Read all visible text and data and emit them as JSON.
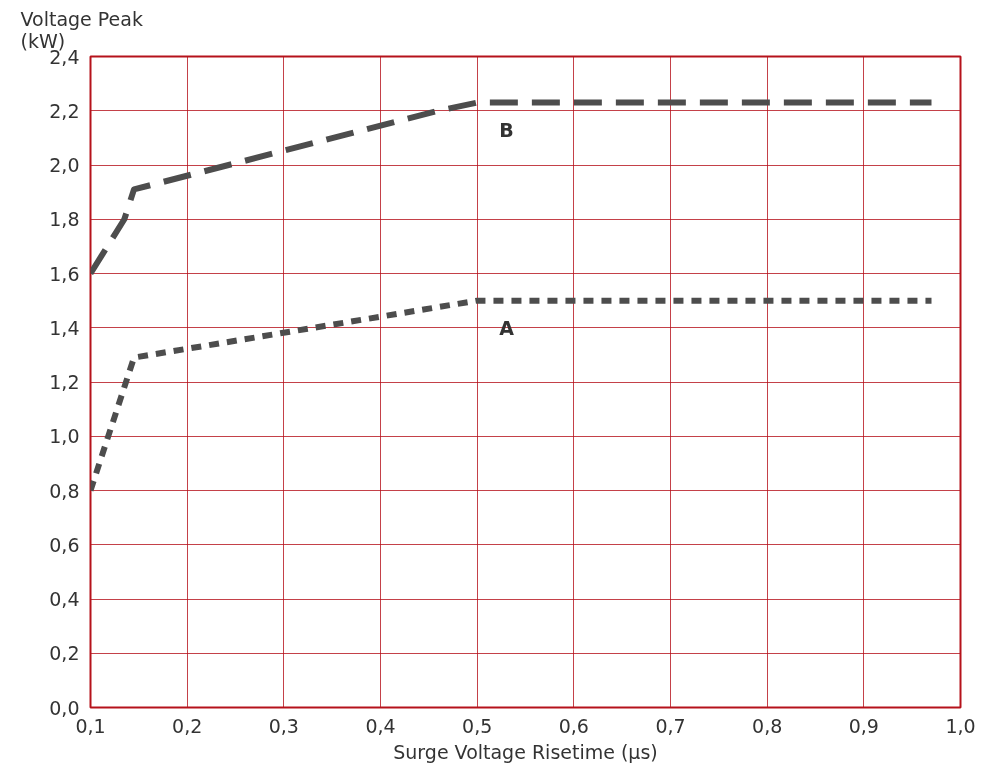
{
  "chart_data": {
    "type": "line",
    "xlabel": "Surge Voltage Risetime (µs)",
    "ylabel": "Voltage Peak\n(kW)",
    "xlim": [
      0.1,
      1.0
    ],
    "ylim": [
      0,
      2.4
    ],
    "xticks": [
      {
        "value": 0.1,
        "label": "0,1"
      },
      {
        "value": 0.2,
        "label": "0,2"
      },
      {
        "value": 0.3,
        "label": "0,3"
      },
      {
        "value": 0.4,
        "label": "0,4"
      },
      {
        "value": 0.5,
        "label": "0,5"
      },
      {
        "value": 0.6,
        "label": "0,6"
      },
      {
        "value": 0.7,
        "label": "0,7"
      },
      {
        "value": 0.8,
        "label": "0,8"
      },
      {
        "value": 0.9,
        "label": "0,9"
      },
      {
        "value": 1.0,
        "label": "1,0"
      }
    ],
    "yticks": [
      {
        "value": 0,
        "label": "0,0"
      },
      {
        "value": 0.2,
        "label": "0,2"
      },
      {
        "value": 0.4,
        "label": "0,4"
      },
      {
        "value": 0.6,
        "label": "0,6"
      },
      {
        "value": 0.8,
        "label": "0,8"
      },
      {
        "value": 1.0,
        "label": "1,0"
      },
      {
        "value": 1.2,
        "label": "1,2"
      },
      {
        "value": 1.4,
        "label": "1,4"
      },
      {
        "value": 1.6,
        "label": "1,6"
      },
      {
        "value": 1.8,
        "label": "1,8"
      },
      {
        "value": 2.0,
        "label": "2,0"
      },
      {
        "value": 2.2,
        "label": "2,2"
      },
      {
        "value": 2.4,
        "label": "2,4"
      }
    ],
    "grid": true,
    "series": [
      {
        "name": "B",
        "color": "#4d4d4d",
        "line_style": "dashed",
        "x": [
          0.1,
          0.135,
          0.145,
          0.46,
          0.5,
          0.97
        ],
        "values": [
          1.6,
          1.8,
          1.91,
          2.2,
          2.23,
          2.23
        ]
      },
      {
        "name": "A",
        "color": "#4d4d4d",
        "line_style": "dotted",
        "x": [
          0.1,
          0.145,
          0.5,
          0.97
        ],
        "values": [
          0.8,
          1.29,
          1.5,
          1.5
        ]
      }
    ]
  }
}
